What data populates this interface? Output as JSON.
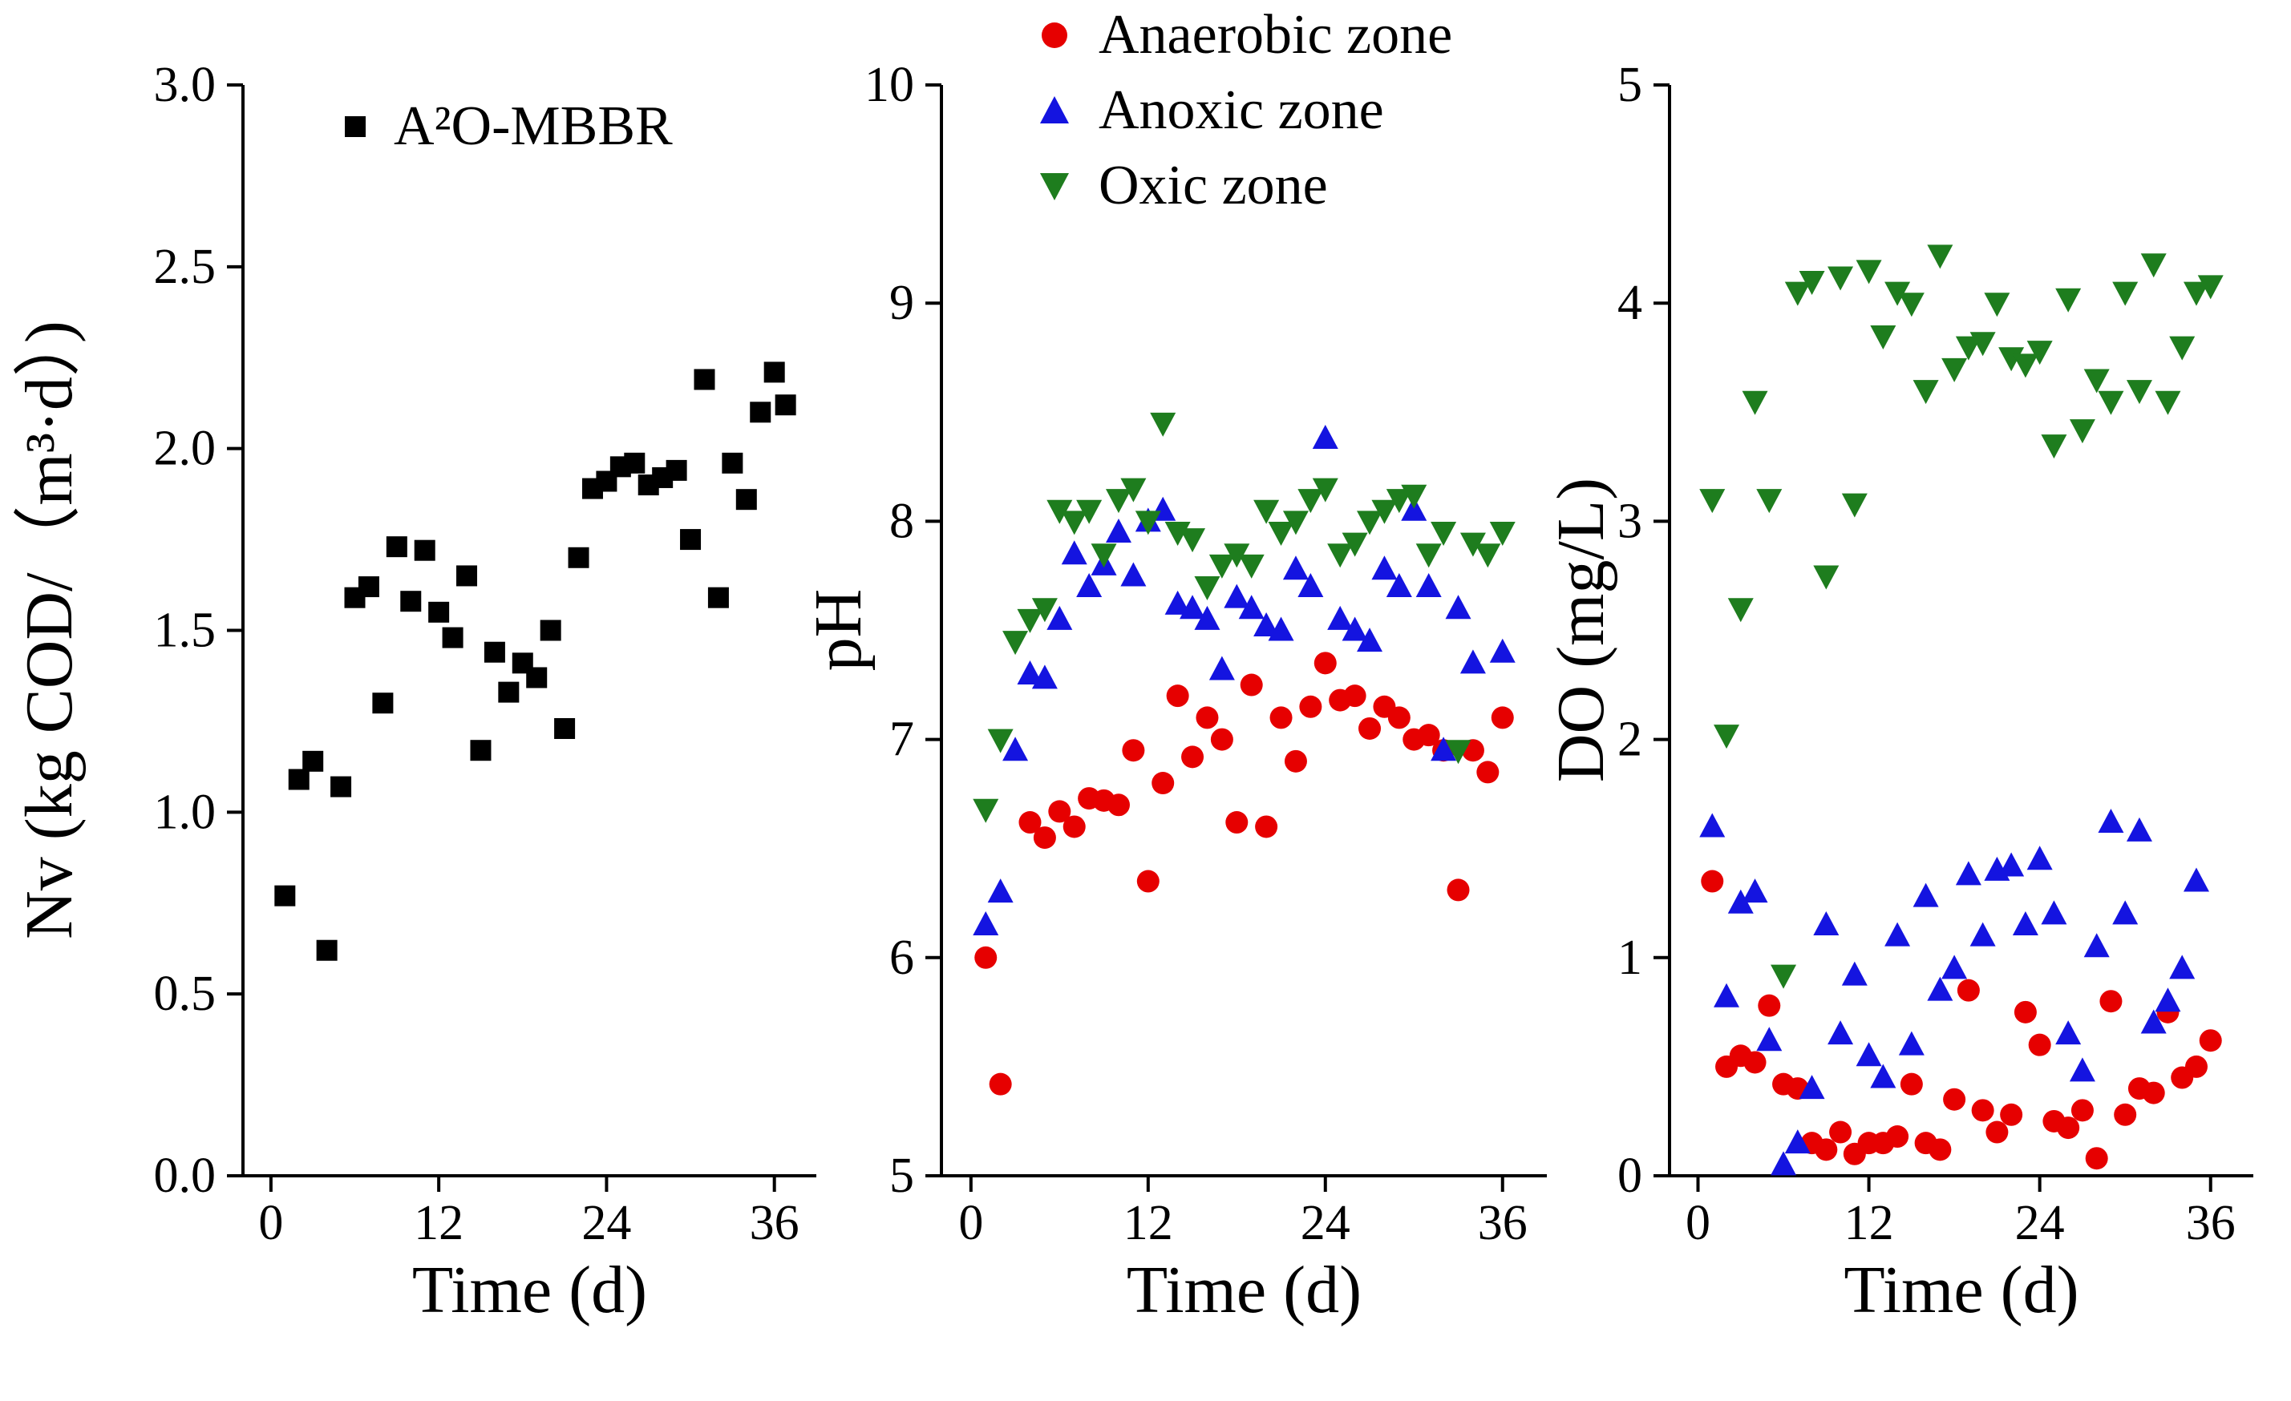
{
  "figure": {
    "background": "#ffffff"
  },
  "legend_left": {
    "label": "A²O-MBBR",
    "marker": "square",
    "color": "#000000"
  },
  "legend_zones": [
    {
      "label": "Anaerobic zone",
      "marker": "circle",
      "color": "#e60000"
    },
    {
      "label": "Anoxic zone",
      "marker": "triangle-up",
      "color": "#1414e0"
    },
    {
      "label": "Oxic zone",
      "marker": "triangle-down",
      "color": "#1e7d1e"
    }
  ],
  "chart_data": [
    {
      "type": "scatter",
      "title": "",
      "xlabel": "Time (d)",
      "ylabel": "Nv (kg COD/（m³·d）)",
      "xlim": [
        -2,
        39
      ],
      "ylim": [
        0,
        3
      ],
      "xticks": [
        0,
        12,
        24,
        36
      ],
      "xticklabels": [
        "0",
        "12",
        "24",
        "36"
      ],
      "yticks": [
        0,
        0.5,
        1,
        1.5,
        2,
        2.5,
        3
      ],
      "yticklabels": [
        "0.0",
        "0.5",
        "1.0",
        "1.5",
        "2.0",
        "2.5",
        "3.0"
      ],
      "grid": false,
      "legend_position": "top-center-inside",
      "series": [
        {
          "name": "A²O-MBBR",
          "marker": "square",
          "color": "#000000",
          "points": [
            [
              1,
              0.77
            ],
            [
              2,
              1.09
            ],
            [
              3,
              1.14
            ],
            [
              4,
              0.62
            ],
            [
              5,
              1.07
            ],
            [
              6,
              1.59
            ],
            [
              7,
              1.62
            ],
            [
              8,
              1.3
            ],
            [
              9,
              1.73
            ],
            [
              10,
              1.58
            ],
            [
              11,
              1.72
            ],
            [
              12,
              1.55
            ],
            [
              13,
              1.48
            ],
            [
              14,
              1.65
            ],
            [
              15,
              1.17
            ],
            [
              16,
              1.44
            ],
            [
              17,
              1.33
            ],
            [
              18,
              1.41
            ],
            [
              19,
              1.37
            ],
            [
              20,
              1.5
            ],
            [
              21,
              1.23
            ],
            [
              22,
              1.7
            ],
            [
              23,
              1.89
            ],
            [
              24,
              1.91
            ],
            [
              25,
              1.95
            ],
            [
              26,
              1.96
            ],
            [
              27,
              1.9
            ],
            [
              28,
              1.92
            ],
            [
              29,
              1.94
            ],
            [
              30,
              1.75
            ],
            [
              31,
              2.19
            ],
            [
              32,
              1.59
            ],
            [
              33,
              1.96
            ],
            [
              34,
              1.86
            ],
            [
              35,
              2.1
            ],
            [
              36,
              2.21
            ],
            [
              36.8,
              2.12
            ]
          ]
        }
      ]
    },
    {
      "type": "scatter",
      "title": "",
      "xlabel": "Time (d)",
      "ylabel": "pH",
      "xlim": [
        -2,
        39
      ],
      "ylim": [
        5,
        10
      ],
      "xticks": [
        0,
        12,
        24,
        36
      ],
      "xticklabels": [
        "0",
        "12",
        "24",
        "36"
      ],
      "yticks": [
        5,
        6,
        7,
        8,
        9,
        10
      ],
      "yticklabels": [
        "5",
        "6",
        "7",
        "8",
        "9",
        "10"
      ],
      "grid": false,
      "legend_position": "top-outside",
      "series": [
        {
          "name": "Anaerobic zone",
          "marker": "circle",
          "color": "#e60000",
          "points": [
            [
              1,
              6.0
            ],
            [
              2,
              5.42
            ],
            [
              4,
              6.62
            ],
            [
              5,
              6.55
            ],
            [
              6,
              6.67
            ],
            [
              7,
              6.6
            ],
            [
              8,
              6.73
            ],
            [
              9,
              6.72
            ],
            [
              10,
              6.7
            ],
            [
              11,
              6.95
            ],
            [
              12,
              6.35
            ],
            [
              13,
              6.8
            ],
            [
              14,
              7.2
            ],
            [
              15,
              6.92
            ],
            [
              16,
              7.1
            ],
            [
              17,
              7.0
            ],
            [
              18,
              6.62
            ],
            [
              19,
              7.25
            ],
            [
              20,
              6.6
            ],
            [
              21,
              7.1
            ],
            [
              22,
              6.9
            ],
            [
              23,
              7.15
            ],
            [
              24,
              7.35
            ],
            [
              25,
              7.18
            ],
            [
              26,
              7.2
            ],
            [
              27,
              7.05
            ],
            [
              28,
              7.15
            ],
            [
              29,
              7.1
            ],
            [
              30,
              7.0
            ],
            [
              31,
              7.02
            ],
            [
              32,
              6.95
            ],
            [
              33,
              6.31
            ],
            [
              34,
              6.95
            ],
            [
              35,
              6.85
            ],
            [
              36,
              7.1
            ]
          ]
        },
        {
          "name": "Anoxic zone",
          "marker": "triangle-up",
          "color": "#1414e0",
          "points": [
            [
              1,
              6.15
            ],
            [
              2,
              6.3
            ],
            [
              3,
              6.95
            ],
            [
              4,
              7.3
            ],
            [
              5,
              7.28
            ],
            [
              6,
              7.55
            ],
            [
              7,
              7.85
            ],
            [
              8,
              7.7
            ],
            [
              9,
              7.8
            ],
            [
              10,
              7.95
            ],
            [
              11,
              7.75
            ],
            [
              12,
              8.0
            ],
            [
              13,
              8.05
            ],
            [
              14,
              7.62
            ],
            [
              15,
              7.6
            ],
            [
              16,
              7.55
            ],
            [
              17,
              7.32
            ],
            [
              18,
              7.65
            ],
            [
              19,
              7.6
            ],
            [
              20,
              7.52
            ],
            [
              21,
              7.5
            ],
            [
              22,
              7.78
            ],
            [
              23,
              7.7
            ],
            [
              24,
              8.38
            ],
            [
              25,
              7.55
            ],
            [
              26,
              7.5
            ],
            [
              27,
              7.45
            ],
            [
              28,
              7.78
            ],
            [
              29,
              7.7
            ],
            [
              30,
              8.05
            ],
            [
              31,
              7.7
            ],
            [
              32,
              6.95
            ],
            [
              33,
              7.6
            ],
            [
              34,
              7.35
            ],
            [
              36,
              7.4
            ]
          ]
        },
        {
          "name": "Oxic zone",
          "marker": "triangle-down",
          "color": "#1e7d1e",
          "points": [
            [
              1,
              6.68
            ],
            [
              2,
              7.0
            ],
            [
              3,
              7.45
            ],
            [
              4,
              7.55
            ],
            [
              5,
              7.6
            ],
            [
              6,
              8.05
            ],
            [
              7,
              8.0
            ],
            [
              8,
              8.05
            ],
            [
              9,
              7.85
            ],
            [
              10,
              8.1
            ],
            [
              11,
              8.15
            ],
            [
              12,
              8.0
            ],
            [
              13,
              8.45
            ],
            [
              14,
              7.95
            ],
            [
              15,
              7.92
            ],
            [
              16,
              7.7
            ],
            [
              17,
              7.8
            ],
            [
              18,
              7.85
            ],
            [
              19,
              7.8
            ],
            [
              20,
              8.05
            ],
            [
              21,
              7.95
            ],
            [
              22,
              8.0
            ],
            [
              23,
              8.1
            ],
            [
              24,
              8.15
            ],
            [
              25,
              7.85
            ],
            [
              26,
              7.9
            ],
            [
              27,
              8.0
            ],
            [
              28,
              8.05
            ],
            [
              29,
              8.1
            ],
            [
              30,
              8.12
            ],
            [
              31,
              7.85
            ],
            [
              32,
              7.95
            ],
            [
              33,
              6.95
            ],
            [
              34,
              7.9
            ],
            [
              35,
              7.85
            ],
            [
              36,
              7.95
            ]
          ]
        }
      ]
    },
    {
      "type": "scatter",
      "title": "",
      "xlabel": "Time (d)",
      "ylabel": "DO (mg/L)",
      "xlim": [
        -2,
        39
      ],
      "ylim": [
        0,
        5
      ],
      "xticks": [
        0,
        12,
        24,
        36
      ],
      "xticklabels": [
        "0",
        "12",
        "24",
        "36"
      ],
      "yticks": [
        0,
        1,
        2,
        3,
        4,
        5
      ],
      "yticklabels": [
        "0",
        "1",
        "2",
        "3",
        "4",
        "5"
      ],
      "grid": false,
      "legend_position": "shared-top-outside",
      "series": [
        {
          "name": "Anaerobic zone",
          "marker": "circle",
          "color": "#e60000",
          "points": [
            [
              1,
              1.35
            ],
            [
              2,
              0.5
            ],
            [
              3,
              0.55
            ],
            [
              4,
              0.52
            ],
            [
              5,
              0.78
            ],
            [
              6,
              0.42
            ],
            [
              7,
              0.4
            ],
            [
              8,
              0.15
            ],
            [
              9,
              0.12
            ],
            [
              10,
              0.2
            ],
            [
              11,
              0.1
            ],
            [
              12,
              0.15
            ],
            [
              13,
              0.15
            ],
            [
              14,
              0.18
            ],
            [
              15,
              0.42
            ],
            [
              16,
              0.15
            ],
            [
              17,
              0.12
            ],
            [
              18,
              0.35
            ],
            [
              19,
              0.85
            ],
            [
              20,
              0.3
            ],
            [
              21,
              0.2
            ],
            [
              22,
              0.28
            ],
            [
              23,
              0.75
            ],
            [
              24,
              0.6
            ],
            [
              25,
              0.25
            ],
            [
              26,
              0.22
            ],
            [
              27,
              0.3
            ],
            [
              28,
              0.08
            ],
            [
              29,
              0.8
            ],
            [
              30,
              0.28
            ],
            [
              31,
              0.4
            ],
            [
              32,
              0.38
            ],
            [
              33,
              0.75
            ],
            [
              34,
              0.45
            ],
            [
              35,
              0.5
            ],
            [
              36,
              0.62
            ]
          ]
        },
        {
          "name": "Anoxic zone",
          "marker": "triangle-up",
          "color": "#1414e0",
          "points": [
            [
              1,
              1.6
            ],
            [
              2,
              0.82
            ],
            [
              3,
              1.25
            ],
            [
              4,
              1.3
            ],
            [
              5,
              0.62
            ],
            [
              6,
              0.05
            ],
            [
              7,
              0.15
            ],
            [
              8,
              0.4
            ],
            [
              9,
              1.15
            ],
            [
              10,
              0.65
            ],
            [
              11,
              0.92
            ],
            [
              12,
              0.55
            ],
            [
              13,
              0.45
            ],
            [
              14,
              1.1
            ],
            [
              15,
              0.6
            ],
            [
              16,
              1.28
            ],
            [
              17,
              0.85
            ],
            [
              18,
              0.95
            ],
            [
              19,
              1.38
            ],
            [
              20,
              1.1
            ],
            [
              21,
              1.4
            ],
            [
              22,
              1.42
            ],
            [
              23,
              1.15
            ],
            [
              24,
              1.45
            ],
            [
              25,
              1.2
            ],
            [
              26,
              0.65
            ],
            [
              27,
              0.48
            ],
            [
              28,
              1.05
            ],
            [
              29,
              1.62
            ],
            [
              30,
              1.2
            ],
            [
              31,
              1.58
            ],
            [
              32,
              0.7
            ],
            [
              33,
              0.8
            ],
            [
              34,
              0.95
            ],
            [
              35,
              1.35
            ]
          ]
        },
        {
          "name": "Oxic zone",
          "marker": "triangle-down",
          "color": "#1e7d1e",
          "points": [
            [
              1,
              3.1
            ],
            [
              2,
              2.02
            ],
            [
              3,
              2.6
            ],
            [
              4,
              3.55
            ],
            [
              5,
              3.1
            ],
            [
              6,
              0.92
            ],
            [
              7,
              4.05
            ],
            [
              8,
              4.1
            ],
            [
              9,
              2.75
            ],
            [
              10,
              4.12
            ],
            [
              11,
              3.08
            ],
            [
              12,
              4.15
            ],
            [
              13,
              3.85
            ],
            [
              14,
              4.05
            ],
            [
              15,
              4.0
            ],
            [
              16,
              3.6
            ],
            [
              17,
              4.22
            ],
            [
              18,
              3.7
            ],
            [
              19,
              3.8
            ],
            [
              20,
              3.82
            ],
            [
              21,
              4.0
            ],
            [
              22,
              3.75
            ],
            [
              23,
              3.72
            ],
            [
              24,
              3.78
            ],
            [
              25,
              3.35
            ],
            [
              26,
              4.02
            ],
            [
              27,
              3.42
            ],
            [
              28,
              3.65
            ],
            [
              29,
              3.55
            ],
            [
              30,
              4.05
            ],
            [
              31,
              3.6
            ],
            [
              32,
              4.18
            ],
            [
              33,
              3.55
            ],
            [
              34,
              3.8
            ],
            [
              35,
              4.05
            ],
            [
              36,
              4.08
            ]
          ]
        }
      ]
    }
  ]
}
